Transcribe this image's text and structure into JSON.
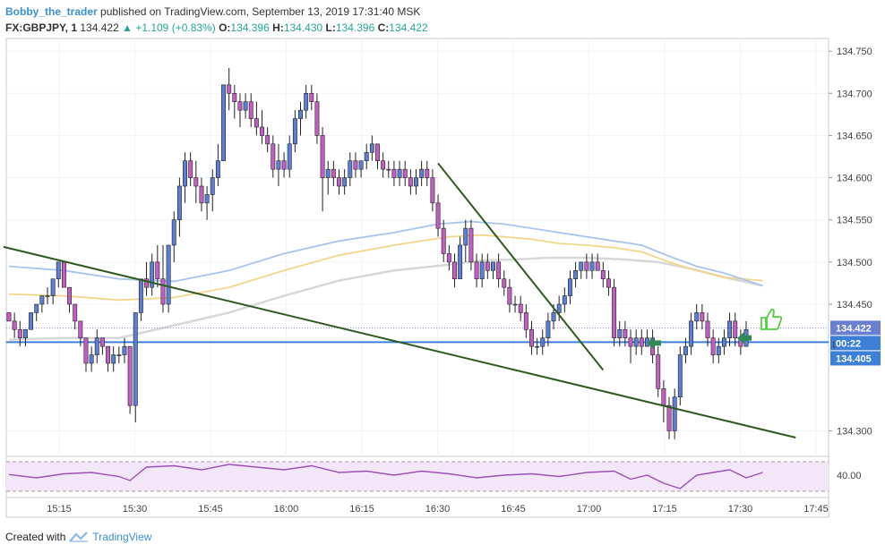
{
  "header": {
    "author": "Bobby_the_trader",
    "published": "published on TradingView.com, September 13, 2019 17:31:40 MSK",
    "symbol": "FX:GBPJPY, 1",
    "last": "134.422",
    "change": "▲ +1.109 (+0.83%)",
    "o_label": "O:",
    "o": "134.396",
    "h_label": "H:",
    "h": "134.430",
    "l_label": "L:",
    "l": "134.396",
    "c_label": "C:",
    "c": "134.422"
  },
  "footer": {
    "created": "Created with",
    "brand": "TradingView"
  },
  "colors": {
    "bull": "#5b7fd6",
    "bear": "#c45dc4",
    "wick": "#222222",
    "ma_fast": "#a8c4ee",
    "ma_mid": "#f2d68a",
    "ma_slow": "#d7d7d7",
    "trendline": "#2f5a1f",
    "price_line": "#3d7fd6",
    "rsi": "#9c4fb5",
    "rsi_bg": "#f3e6f8",
    "arrow": "#2e8b57",
    "thumb": "#4cd13a"
  },
  "icons": [
    "arrow-right-icon",
    "arrow-left-icon",
    "thumbs-up-icon",
    "tradingview-logo-icon"
  ],
  "chart_data": {
    "type": "candlestick",
    "y_ticks": [
      "134.750",
      "134.700",
      "134.650",
      "134.600",
      "134.550",
      "134.500",
      "134.450",
      "134.300"
    ],
    "ylim": [
      134.275,
      134.765
    ],
    "x_ticks": [
      "15:15",
      "15:30",
      "15:45",
      "16:00",
      "16:15",
      "16:30",
      "16:45",
      "17:00",
      "17:15",
      "17:30",
      "17:45"
    ],
    "price_labels": {
      "last": "134.422",
      "countdown": "00:22",
      "line": "134.405",
      "mark": "1"
    },
    "rsi_ticks": [
      "40.00"
    ],
    "candles": [
      [
        134.44,
        134.44,
        134.43,
        134.43
      ],
      [
        134.43,
        134.44,
        134.41,
        134.42
      ],
      [
        134.42,
        134.43,
        134.4,
        134.41
      ],
      [
        134.41,
        134.42,
        134.4,
        134.42
      ],
      [
        134.42,
        134.44,
        134.42,
        134.44
      ],
      [
        134.44,
        134.45,
        134.43,
        134.45
      ],
      [
        134.45,
        134.46,
        134.44,
        134.46
      ],
      [
        134.46,
        134.47,
        134.45,
        134.46
      ],
      [
        134.46,
        134.48,
        134.45,
        134.48
      ],
      [
        134.48,
        134.5,
        134.47,
        134.5
      ],
      [
        134.5,
        134.5,
        134.47,
        134.47
      ],
      [
        134.47,
        134.47,
        134.44,
        134.45
      ],
      [
        134.45,
        134.45,
        134.42,
        134.43
      ],
      [
        134.43,
        134.43,
        134.4,
        134.41
      ],
      [
        134.41,
        134.41,
        134.37,
        134.38
      ],
      [
        134.38,
        134.4,
        134.37,
        134.39
      ],
      [
        134.39,
        134.42,
        134.38,
        134.41
      ],
      [
        134.41,
        134.41,
        134.39,
        134.4
      ],
      [
        134.4,
        134.4,
        134.37,
        134.38
      ],
      [
        134.38,
        134.4,
        134.37,
        134.39
      ],
      [
        134.39,
        134.4,
        134.38,
        134.39
      ],
      [
        134.39,
        134.41,
        134.38,
        134.4
      ],
      [
        134.4,
        134.4,
        134.32,
        134.33
      ],
      [
        134.33,
        134.44,
        134.31,
        134.44
      ],
      [
        134.44,
        134.48,
        134.43,
        134.48
      ],
      [
        134.48,
        134.5,
        134.46,
        134.47
      ],
      [
        134.47,
        134.51,
        134.46,
        134.5
      ],
      [
        134.5,
        134.52,
        134.47,
        134.48
      ],
      [
        134.48,
        134.52,
        134.44,
        134.45
      ],
      [
        134.45,
        134.52,
        134.44,
        134.52
      ],
      [
        134.52,
        134.56,
        134.5,
        134.55
      ],
      [
        134.55,
        134.6,
        134.53,
        134.59
      ],
      [
        134.59,
        134.63,
        134.57,
        134.62
      ],
      [
        134.62,
        134.63,
        134.59,
        134.6
      ],
      [
        134.6,
        134.62,
        134.57,
        134.59
      ],
      [
        134.59,
        134.6,
        134.56,
        134.57
      ],
      [
        134.57,
        134.59,
        134.55,
        134.58
      ],
      [
        134.58,
        134.61,
        134.56,
        134.6
      ],
      [
        134.6,
        134.64,
        134.59,
        134.62
      ],
      [
        134.62,
        134.71,
        134.62,
        134.71
      ],
      [
        134.71,
        134.73,
        134.68,
        134.7
      ],
      [
        134.7,
        134.71,
        134.67,
        134.69
      ],
      [
        134.69,
        134.7,
        134.66,
        134.68
      ],
      [
        134.68,
        134.7,
        134.67,
        134.69
      ],
      [
        134.69,
        134.7,
        134.66,
        134.67
      ],
      [
        134.67,
        134.69,
        134.65,
        134.66
      ],
      [
        134.66,
        134.68,
        134.64,
        134.65
      ],
      [
        134.65,
        134.66,
        134.63,
        134.64
      ],
      [
        134.64,
        134.65,
        134.6,
        134.61
      ],
      [
        134.61,
        134.64,
        134.59,
        134.62
      ],
      [
        134.62,
        134.63,
        134.6,
        134.61
      ],
      [
        134.61,
        134.65,
        134.6,
        134.64
      ],
      [
        134.64,
        134.68,
        134.63,
        134.67
      ],
      [
        134.67,
        134.69,
        134.65,
        134.68
      ],
      [
        134.68,
        134.71,
        134.67,
        134.7
      ],
      [
        134.7,
        134.71,
        134.68,
        134.69
      ],
      [
        134.69,
        134.7,
        134.64,
        134.65
      ],
      [
        134.65,
        134.66,
        134.56,
        134.6
      ],
      [
        134.6,
        134.62,
        134.58,
        134.61
      ],
      [
        134.61,
        134.62,
        134.59,
        134.6
      ],
      [
        134.6,
        134.61,
        134.58,
        134.59
      ],
      [
        134.59,
        134.61,
        134.58,
        134.6
      ],
      [
        134.6,
        134.63,
        134.59,
        134.62
      ],
      [
        134.62,
        134.63,
        134.6,
        134.61
      ],
      [
        134.61,
        134.62,
        134.6,
        134.62
      ],
      [
        134.62,
        134.64,
        134.61,
        134.63
      ],
      [
        134.63,
        134.65,
        134.62,
        134.64
      ],
      [
        134.64,
        134.64,
        134.61,
        134.62
      ],
      [
        134.62,
        134.63,
        134.6,
        134.61
      ],
      [
        134.61,
        134.62,
        134.6,
        134.61
      ],
      [
        134.61,
        134.62,
        134.59,
        134.6
      ],
      [
        134.6,
        134.62,
        134.59,
        134.61
      ],
      [
        134.61,
        134.62,
        134.59,
        134.6
      ],
      [
        134.6,
        134.61,
        134.58,
        134.59
      ],
      [
        134.59,
        134.61,
        134.58,
        134.6
      ],
      [
        134.6,
        134.62,
        134.59,
        134.61
      ],
      [
        134.61,
        134.62,
        134.59,
        134.6
      ],
      [
        134.6,
        134.61,
        134.56,
        134.57
      ],
      [
        134.57,
        134.58,
        134.53,
        134.54
      ],
      [
        134.54,
        134.55,
        134.5,
        134.51
      ],
      [
        134.51,
        134.52,
        134.49,
        134.5
      ],
      [
        134.5,
        134.51,
        134.47,
        134.48
      ],
      [
        134.48,
        134.53,
        134.48,
        134.52
      ],
      [
        134.52,
        134.55,
        134.5,
        134.54
      ],
      [
        134.54,
        134.55,
        134.49,
        134.5
      ],
      [
        134.5,
        134.51,
        134.47,
        134.48
      ],
      [
        134.48,
        134.51,
        134.47,
        134.5
      ],
      [
        134.5,
        134.51,
        134.48,
        134.49
      ],
      [
        134.49,
        134.5,
        134.48,
        134.5
      ],
      [
        134.5,
        134.51,
        134.47,
        134.48
      ],
      [
        134.48,
        134.49,
        134.46,
        134.47
      ],
      [
        134.47,
        134.48,
        134.44,
        134.45
      ],
      [
        134.45,
        134.46,
        134.44,
        134.45
      ],
      [
        134.45,
        134.46,
        134.43,
        134.44
      ],
      [
        134.44,
        134.45,
        134.41,
        134.42
      ],
      [
        134.42,
        134.43,
        134.39,
        134.4
      ],
      [
        134.4,
        134.41,
        134.39,
        134.4
      ],
      [
        134.4,
        134.42,
        134.39,
        134.41
      ],
      [
        134.41,
        134.44,
        134.4,
        134.43
      ],
      [
        134.43,
        134.45,
        134.42,
        134.44
      ],
      [
        134.44,
        134.46,
        134.43,
        134.45
      ],
      [
        134.45,
        134.47,
        134.44,
        134.46
      ],
      [
        134.46,
        134.49,
        134.45,
        134.48
      ],
      [
        134.48,
        134.5,
        134.47,
        134.49
      ],
      [
        134.49,
        134.5,
        134.48,
        134.5
      ],
      [
        134.5,
        134.51,
        134.48,
        134.49
      ],
      [
        134.49,
        134.51,
        134.48,
        134.5
      ],
      [
        134.5,
        134.51,
        134.49,
        134.49
      ],
      [
        134.49,
        134.5,
        134.47,
        134.48
      ],
      [
        134.48,
        134.49,
        134.46,
        134.47
      ],
      [
        134.47,
        134.48,
        134.4,
        134.41
      ],
      [
        134.41,
        134.43,
        134.4,
        134.42
      ],
      [
        134.42,
        134.43,
        134.4,
        134.41
      ],
      [
        134.41,
        134.42,
        134.38,
        134.4
      ],
      [
        134.4,
        134.42,
        134.39,
        134.41
      ],
      [
        134.41,
        134.42,
        134.39,
        134.4
      ],
      [
        134.4,
        134.42,
        134.4,
        134.41
      ],
      [
        134.41,
        134.42,
        134.38,
        134.39
      ],
      [
        134.39,
        134.4,
        134.34,
        134.35
      ],
      [
        134.35,
        134.36,
        134.31,
        134.33
      ],
      [
        134.33,
        134.34,
        134.29,
        134.3
      ],
      [
        134.3,
        134.35,
        134.29,
        134.34
      ],
      [
        134.34,
        134.4,
        134.33,
        134.39
      ],
      [
        134.39,
        134.41,
        134.38,
        134.4
      ],
      [
        134.4,
        134.44,
        134.39,
        134.43
      ],
      [
        134.43,
        134.45,
        134.42,
        134.44
      ],
      [
        134.44,
        134.45,
        134.42,
        134.43
      ],
      [
        134.43,
        134.44,
        134.4,
        134.41
      ],
      [
        134.41,
        134.42,
        134.38,
        134.39
      ],
      [
        134.39,
        134.41,
        134.38,
        134.4
      ],
      [
        134.4,
        134.42,
        134.39,
        134.41
      ],
      [
        134.41,
        134.44,
        134.4,
        134.43
      ],
      [
        134.43,
        134.44,
        134.4,
        134.41
      ],
      [
        134.41,
        134.42,
        134.39,
        134.4
      ],
      [
        134.4,
        134.43,
        134.4,
        134.42
      ]
    ],
    "ma_fast": [
      [
        0,
        134.495
      ],
      [
        10,
        134.49
      ],
      [
        20,
        134.48
      ],
      [
        30,
        134.477
      ],
      [
        40,
        134.49
      ],
      [
        50,
        134.51
      ],
      [
        60,
        134.525
      ],
      [
        70,
        134.535
      ],
      [
        78,
        134.545
      ],
      [
        84,
        134.548
      ],
      [
        90,
        134.545
      ],
      [
        95,
        134.54
      ],
      [
        100,
        134.535
      ],
      [
        105,
        134.53
      ],
      [
        110,
        134.525
      ],
      [
        115,
        134.52
      ],
      [
        120,
        134.507
      ],
      [
        125,
        134.495
      ],
      [
        130,
        134.487
      ],
      [
        137,
        134.472
      ]
    ],
    "ma_mid": [
      [
        0,
        134.462
      ],
      [
        10,
        134.46
      ],
      [
        20,
        134.455
      ],
      [
        30,
        134.458
      ],
      [
        40,
        134.47
      ],
      [
        50,
        134.49
      ],
      [
        60,
        134.508
      ],
      [
        70,
        134.52
      ],
      [
        80,
        134.53
      ],
      [
        86,
        134.532
      ],
      [
        90,
        134.53
      ],
      [
        95,
        134.527
      ],
      [
        100,
        134.522
      ],
      [
        105,
        134.52
      ],
      [
        110,
        134.517
      ],
      [
        115,
        134.512
      ],
      [
        120,
        134.5
      ],
      [
        125,
        134.49
      ],
      [
        130,
        134.482
      ],
      [
        137,
        134.478
      ]
    ],
    "ma_slow": [
      [
        0,
        134.408
      ],
      [
        10,
        134.41
      ],
      [
        20,
        134.41
      ],
      [
        30,
        134.425
      ],
      [
        40,
        134.44
      ],
      [
        50,
        134.46
      ],
      [
        60,
        134.478
      ],
      [
        70,
        134.49
      ],
      [
        80,
        134.497
      ],
      [
        86,
        134.502
      ],
      [
        92,
        134.503
      ],
      [
        98,
        134.505
      ],
      [
        105,
        134.505
      ],
      [
        112,
        134.503
      ],
      [
        118,
        134.5
      ],
      [
        124,
        134.492
      ],
      [
        130,
        134.482
      ],
      [
        137,
        134.472
      ]
    ],
    "trendlines": [
      {
        "from": [
          -1,
          134.518
        ],
        "to": [
          143,
          134.292
        ]
      },
      {
        "from": [
          78,
          134.617
        ],
        "to": [
          108,
          134.372
        ]
      }
    ],
    "price_line": 134.405,
    "rsi": [
      [
        0,
        40.5
      ],
      [
        5,
        38
      ],
      [
        10,
        41
      ],
      [
        15,
        42
      ],
      [
        20,
        39
      ],
      [
        22,
        36
      ],
      [
        25,
        46
      ],
      [
        30,
        47
      ],
      [
        35,
        44
      ],
      [
        40,
        48
      ],
      [
        45,
        46
      ],
      [
        50,
        44
      ],
      [
        55,
        47
      ],
      [
        60,
        42
      ],
      [
        65,
        43
      ],
      [
        70,
        40
      ],
      [
        75,
        43
      ],
      [
        80,
        41
      ],
      [
        85,
        38
      ],
      [
        90,
        40
      ],
      [
        95,
        41
      ],
      [
        100,
        39
      ],
      [
        105,
        42
      ],
      [
        110,
        43
      ],
      [
        113,
        37
      ],
      [
        116,
        40
      ],
      [
        119,
        34
      ],
      [
        122,
        30
      ],
      [
        125,
        40
      ],
      [
        128,
        42
      ],
      [
        131,
        44
      ],
      [
        134,
        38
      ],
      [
        137,
        42
      ]
    ]
  }
}
